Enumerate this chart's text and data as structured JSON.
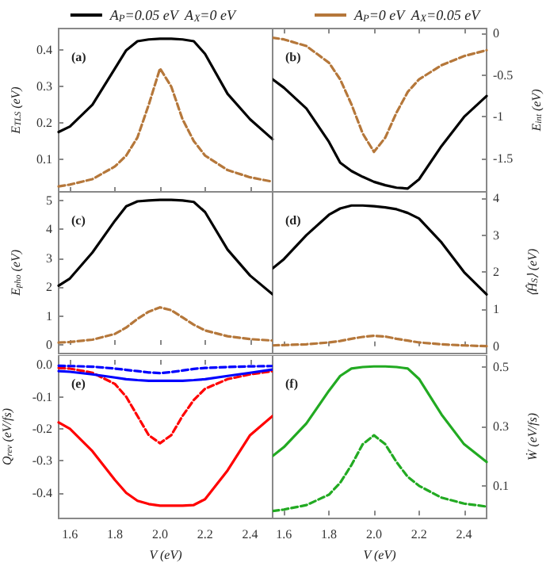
{
  "chart_data": [
    {
      "type": "line",
      "x": [
        1.55,
        1.6,
        1.7,
        1.8,
        1.85,
        1.9,
        1.95,
        2.0,
        2.05,
        2.1,
        2.15,
        2.2,
        2.3,
        2.4,
        2.5
      ],
      "xlim": [
        1.55,
        2.5
      ],
      "xticks": [
        1.6,
        1.8,
        2.0,
        2.2,
        2.4
      ],
      "ylim": [
        0.01,
        0.46
      ],
      "yticks": [
        0.1,
        0.2,
        0.3,
        0.4
      ],
      "ylabel": "E$_{TLS}$ (eV)",
      "annotations": [
        "(a)"
      ],
      "tick_labels": "y",
      "legend": "top",
      "series": [
        {
          "name": "A$_{P}$=0.05 eV  A$_{X}$=0 eV",
          "color": "#000000",
          "line_style": "solid",
          "values": [
            0.175,
            0.19,
            0.25,
            0.35,
            0.4,
            0.425,
            0.43,
            0.432,
            0.432,
            0.43,
            0.425,
            0.39,
            0.28,
            0.21,
            0.155
          ]
        },
        {
          "name": "A$_{P}$=0 eV  A$_{X}$=0.05 eV",
          "color": "#b5773a",
          "line_style": "dashed",
          "values": [
            0.025,
            0.03,
            0.045,
            0.08,
            0.11,
            0.16,
            0.25,
            0.35,
            0.3,
            0.21,
            0.15,
            0.11,
            0.07,
            0.05,
            0.038
          ]
        }
      ]
    },
    {
      "type": "line",
      "x": [
        1.55,
        1.6,
        1.7,
        1.8,
        1.85,
        1.9,
        1.95,
        2.0,
        2.05,
        2.1,
        2.15,
        2.2,
        2.3,
        2.4,
        2.5
      ],
      "xlim": [
        1.55,
        2.5
      ],
      "xticks": [
        1.6,
        1.8,
        2.0,
        2.2,
        2.4
      ],
      "ylim": [
        -1.9,
        0.06
      ],
      "yticks": [
        -1.5,
        -1,
        -0.5,
        0
      ],
      "ylabel": "E$_{int}$ (eV)",
      "annotations": [
        "(b)"
      ],
      "tick_labels": "y",
      "series": [
        {
          "color": "#000000",
          "line_style": "solid",
          "values": [
            -0.55,
            -0.65,
            -0.9,
            -1.3,
            -1.55,
            -1.65,
            -1.72,
            -1.78,
            -1.82,
            -1.85,
            -1.86,
            -1.75,
            -1.35,
            -1.0,
            -0.75
          ]
        },
        {
          "color": "#b5773a",
          "line_style": "dashed",
          "values": [
            -0.05,
            -0.07,
            -0.15,
            -0.35,
            -0.55,
            -0.85,
            -1.2,
            -1.42,
            -1.25,
            -0.95,
            -0.7,
            -0.55,
            -0.38,
            -0.27,
            -0.2
          ]
        }
      ]
    },
    {
      "type": "line",
      "x": [
        1.55,
        1.6,
        1.7,
        1.8,
        1.85,
        1.9,
        1.95,
        2.0,
        2.05,
        2.1,
        2.15,
        2.2,
        2.3,
        2.4,
        2.5
      ],
      "xlim": [
        1.55,
        2.5
      ],
      "xticks": [
        1.6,
        1.8,
        2.0,
        2.2,
        2.4
      ],
      "ylim": [
        -0.3,
        5.3
      ],
      "yticks": [
        0,
        1,
        2,
        3,
        4,
        5
      ],
      "ylabel": "E$_{pho}$ (eV)",
      "annotations": [
        "(c)"
      ],
      "tick_labels": "y",
      "series": [
        {
          "color": "#000000",
          "line_style": "solid",
          "values": [
            2.05,
            2.3,
            3.2,
            4.3,
            4.8,
            4.97,
            5.0,
            5.02,
            5.02,
            5.0,
            4.95,
            4.6,
            3.3,
            2.4,
            1.75
          ]
        },
        {
          "color": "#b5773a",
          "line_style": "dashed",
          "values": [
            0.08,
            0.1,
            0.18,
            0.38,
            0.6,
            0.9,
            1.15,
            1.3,
            1.2,
            0.95,
            0.7,
            0.5,
            0.3,
            0.2,
            0.15
          ]
        }
      ]
    },
    {
      "type": "line",
      "x": [
        1.55,
        1.6,
        1.7,
        1.8,
        1.85,
        1.9,
        1.95,
        2.0,
        2.05,
        2.1,
        2.15,
        2.2,
        2.3,
        2.4,
        2.5
      ],
      "xlim": [
        1.55,
        2.5
      ],
      "xticks": [
        1.6,
        1.8,
        2.0,
        2.2,
        2.4
      ],
      "ylim": [
        -0.2,
        4.17
      ],
      "yticks": [
        0,
        1,
        2,
        3,
        4
      ],
      "ylabel": "⟨Ĥ$_{S}$⟩ (eV)",
      "annotations": [
        "(d)"
      ],
      "tick_labels": "y",
      "series": [
        {
          "color": "#000000",
          "line_style": "solid",
          "values": [
            2.1,
            2.35,
            3.0,
            3.55,
            3.72,
            3.8,
            3.8,
            3.78,
            3.75,
            3.7,
            3.6,
            3.45,
            2.8,
            2.0,
            1.4
          ]
        },
        {
          "color": "#b5773a",
          "line_style": "dashed",
          "values": [
            0.02,
            0.03,
            0.05,
            0.1,
            0.14,
            0.2,
            0.25,
            0.28,
            0.26,
            0.2,
            0.15,
            0.1,
            0.05,
            0.02,
            0.0
          ]
        }
      ]
    },
    {
      "type": "line",
      "x": [
        1.55,
        1.6,
        1.7,
        1.8,
        1.85,
        1.9,
        1.95,
        2.0,
        2.05,
        2.1,
        2.15,
        2.2,
        2.3,
        2.4,
        2.5
      ],
      "xlim": [
        1.55,
        2.5
      ],
      "xticks": [
        1.6,
        1.8,
        {
          "value": 2,
          "label": "2.0"
        },
        2.2,
        2.4
      ],
      "ylim": [
        -0.48,
        0.03
      ],
      "yticks": [
        -0.4,
        -0.3,
        -0.2,
        -0.1,
        {
          "value": 0,
          "label": "0.0"
        }
      ],
      "xlabel": "V (eV)",
      "ylabel": "Q$_{rev}$ (eV/fs)",
      "annotations": [
        "(e)"
      ],
      "series": [
        {
          "color": "#ff0000",
          "line_style": "solid",
          "values": [
            -0.18,
            -0.2,
            -0.27,
            -0.36,
            -0.4,
            -0.425,
            -0.435,
            -0.44,
            -0.44,
            -0.44,
            -0.438,
            -0.42,
            -0.33,
            -0.22,
            -0.16
          ]
        },
        {
          "color": "#ff0000",
          "line_style": "dashed",
          "values": [
            -0.01,
            -0.012,
            -0.025,
            -0.06,
            -0.1,
            -0.16,
            -0.22,
            -0.245,
            -0.22,
            -0.16,
            -0.11,
            -0.075,
            -0.045,
            -0.03,
            -0.02
          ]
        },
        {
          "color": "#0000ff",
          "line_style": "solid",
          "values": [
            -0.02,
            -0.022,
            -0.03,
            -0.04,
            -0.045,
            -0.048,
            -0.05,
            -0.05,
            -0.05,
            -0.05,
            -0.048,
            -0.045,
            -0.035,
            -0.025,
            -0.015
          ]
        },
        {
          "color": "#0000ff",
          "line_style": "dashed",
          "values": [
            -0.003,
            -0.004,
            -0.006,
            -0.012,
            -0.016,
            -0.02,
            -0.024,
            -0.026,
            -0.023,
            -0.018,
            -0.013,
            -0.01,
            -0.007,
            -0.005,
            -0.004
          ]
        }
      ]
    },
    {
      "type": "line",
      "x": [
        1.55,
        1.6,
        1.7,
        1.8,
        1.85,
        1.9,
        1.95,
        2.0,
        2.05,
        2.1,
        2.15,
        2.2,
        2.3,
        2.4,
        2.5
      ],
      "xlim": [
        1.55,
        2.5
      ],
      "xticks": [
        1.6,
        1.8,
        {
          "value": 2,
          "label": "2.0"
        },
        2.2,
        2.4
      ],
      "ylim": [
        -0.01,
        0.54
      ],
      "yticks": [
        0.1,
        0.3,
        0.5
      ],
      "xlabel": "V (eV)",
      "ylabel": "Ẇ (eV/fs)",
      "annotations": [
        "(f)"
      ],
      "series": [
        {
          "color": "#22aa22",
          "line_style": "solid",
          "values": [
            0.2,
            0.23,
            0.31,
            0.42,
            0.47,
            0.495,
            0.5,
            0.502,
            0.502,
            0.5,
            0.495,
            0.46,
            0.34,
            0.24,
            0.18
          ]
        },
        {
          "color": "#22aa22",
          "line_style": "dashed",
          "values": [
            0.015,
            0.02,
            0.035,
            0.07,
            0.11,
            0.17,
            0.24,
            0.27,
            0.24,
            0.18,
            0.13,
            0.1,
            0.06,
            0.04,
            0.03
          ]
        }
      ]
    }
  ]
}
